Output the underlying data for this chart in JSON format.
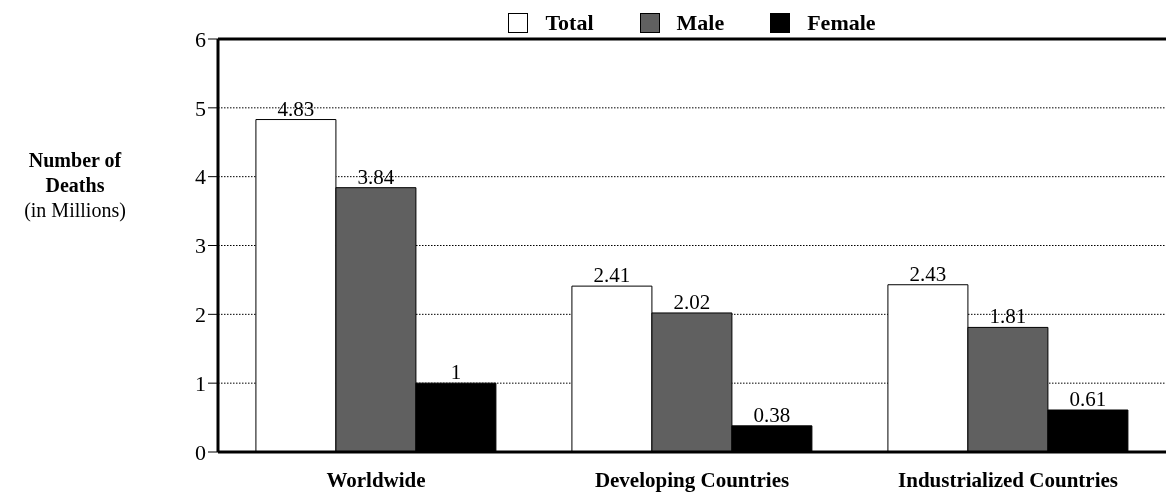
{
  "chart_data": {
    "type": "bar",
    "ylabel": "Number of Deaths (in Millions)",
    "categories": [
      "Worldwide",
      "Developing Countries",
      "Industrialized Countries"
    ],
    "series": [
      {
        "name": "Total",
        "color": "#ffffff",
        "values": [
          4.83,
          2.41,
          2.43
        ]
      },
      {
        "name": "Male",
        "color": "#606060",
        "values": [
          3.84,
          2.02,
          1.81
        ]
      },
      {
        "name": "Female",
        "color": "#000000",
        "values": [
          1,
          0.38,
          0.61
        ]
      }
    ],
    "ylim": [
      0,
      6
    ],
    "yticks": [
      0,
      1,
      2,
      3,
      4,
      5,
      6
    ],
    "grid": "y",
    "legend": "top",
    "data_labels": true
  }
}
